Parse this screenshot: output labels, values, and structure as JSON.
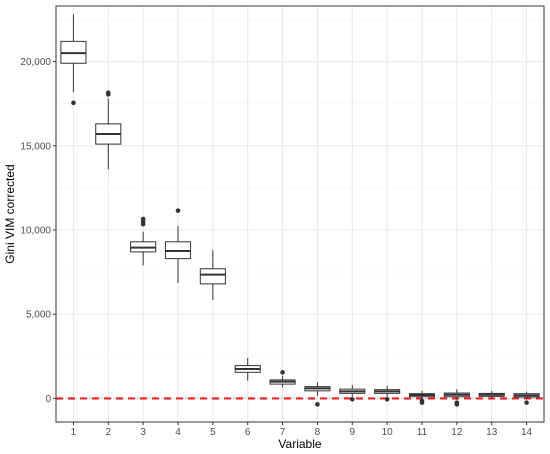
{
  "chart_data": {
    "type": "boxplot",
    "xlabel": "Variable",
    "ylabel": "Gini VIM corrected",
    "ylim": [
      -1400,
      23300
    ],
    "yticks": [
      0,
      5000,
      10000,
      15000,
      20000
    ],
    "ytick_labels": [
      "0",
      "5,000",
      "10,000",
      "15,000",
      "20,000"
    ],
    "grid": true,
    "reference_line": {
      "y": 0,
      "color": "#ff1a1a",
      "style": "dashed"
    },
    "categories": [
      "1",
      "2",
      "3",
      "4",
      "5",
      "6",
      "7",
      "8",
      "9",
      "10",
      "11",
      "12",
      "13",
      "14"
    ],
    "boxes": [
      {
        "category": "1",
        "min": 18200,
        "q1": 19900,
        "median": 20500,
        "q3": 21200,
        "max": 22800,
        "outliers": [
          17550
        ]
      },
      {
        "category": "2",
        "min": 13600,
        "q1": 15100,
        "median": 15700,
        "q3": 16300,
        "max": 17800,
        "outliers": [
          18050,
          18150
        ]
      },
      {
        "category": "3",
        "min": 7900,
        "q1": 8700,
        "median": 8950,
        "q3": 9300,
        "max": 9900,
        "outliers": [
          10350,
          10500,
          10650
        ]
      },
      {
        "category": "4",
        "min": 6850,
        "q1": 8300,
        "median": 8750,
        "q3": 9300,
        "max": 10250,
        "outliers": [
          11150
        ]
      },
      {
        "category": "5",
        "min": 5850,
        "q1": 6800,
        "median": 7350,
        "q3": 7700,
        "max": 8800,
        "outliers": []
      },
      {
        "category": "6",
        "min": 1050,
        "q1": 1550,
        "median": 1750,
        "q3": 1950,
        "max": 2400,
        "outliers": []
      },
      {
        "category": "7",
        "min": 650,
        "q1": 850,
        "median": 1000,
        "q3": 1100,
        "max": 1350,
        "outliers": [
          1550
        ]
      },
      {
        "category": "8",
        "min": 150,
        "q1": 450,
        "median": 600,
        "q3": 700,
        "max": 950,
        "outliers": [
          -350
        ]
      },
      {
        "category": "9",
        "min": 100,
        "q1": 300,
        "median": 420,
        "q3": 550,
        "max": 800,
        "outliers": [
          -50
        ]
      },
      {
        "category": "10",
        "min": 100,
        "q1": 300,
        "median": 420,
        "q3": 520,
        "max": 750,
        "outliers": [
          -50
        ]
      },
      {
        "category": "11",
        "min": -50,
        "q1": 100,
        "median": 200,
        "q3": 280,
        "max": 450,
        "outliers": [
          -150,
          -250
        ]
      },
      {
        "category": "12",
        "min": -100,
        "q1": 100,
        "median": 220,
        "q3": 320,
        "max": 550,
        "outliers": [
          -250,
          -350
        ]
      },
      {
        "category": "13",
        "min": -50,
        "q1": 120,
        "median": 220,
        "q3": 300,
        "max": 450,
        "outliers": []
      },
      {
        "category": "14",
        "min": -50,
        "q1": 80,
        "median": 180,
        "q3": 280,
        "max": 400,
        "outliers": [
          -250
        ]
      }
    ],
    "colors": {
      "panel_border": "#333333",
      "grid_major": "#ebebeb",
      "grid_minor": "#f5f5f5",
      "box_stroke": "#333333",
      "box_fill": "#ffffff"
    }
  }
}
